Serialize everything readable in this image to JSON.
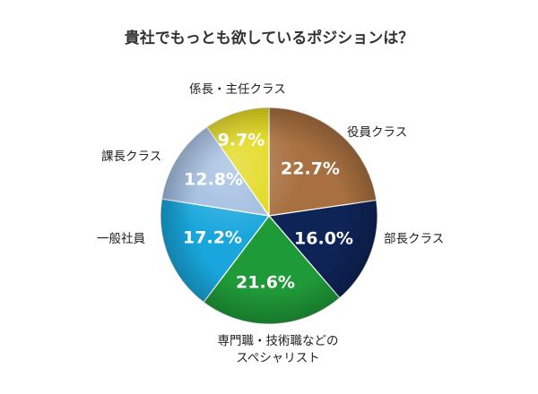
{
  "chart_data": {
    "type": "pie",
    "title": "貴社でもっとも欲しているポジションは？",
    "slices": [
      {
        "label": "役員クラス",
        "value": 22.7,
        "display": "22.7%",
        "color": "#a87040"
      },
      {
        "label": "部長クラス",
        "value": 16.0,
        "display": "16.0%",
        "color": "#0e2356"
      },
      {
        "label": "専門職・技術職などのスペシャリスト",
        "label_lines": [
          "専門職・技術職などの",
          "スペシャリスト"
        ],
        "value": 21.6,
        "display": "21.6%",
        "color": "#1f9a38"
      },
      {
        "label": "一般社員",
        "value": 17.2,
        "display": "17.2%",
        "color": "#18a6dc"
      },
      {
        "label": "課長クラス",
        "value": 12.8,
        "display": "12.8%",
        "color": "#9fbbe0"
      },
      {
        "label": "係長・主任クラス",
        "value": 9.7,
        "display": "9.7%",
        "color": "#e2d816"
      }
    ],
    "start": "12 o'clock",
    "direction": "clockwise",
    "legend": "none (labels outside slices)"
  }
}
